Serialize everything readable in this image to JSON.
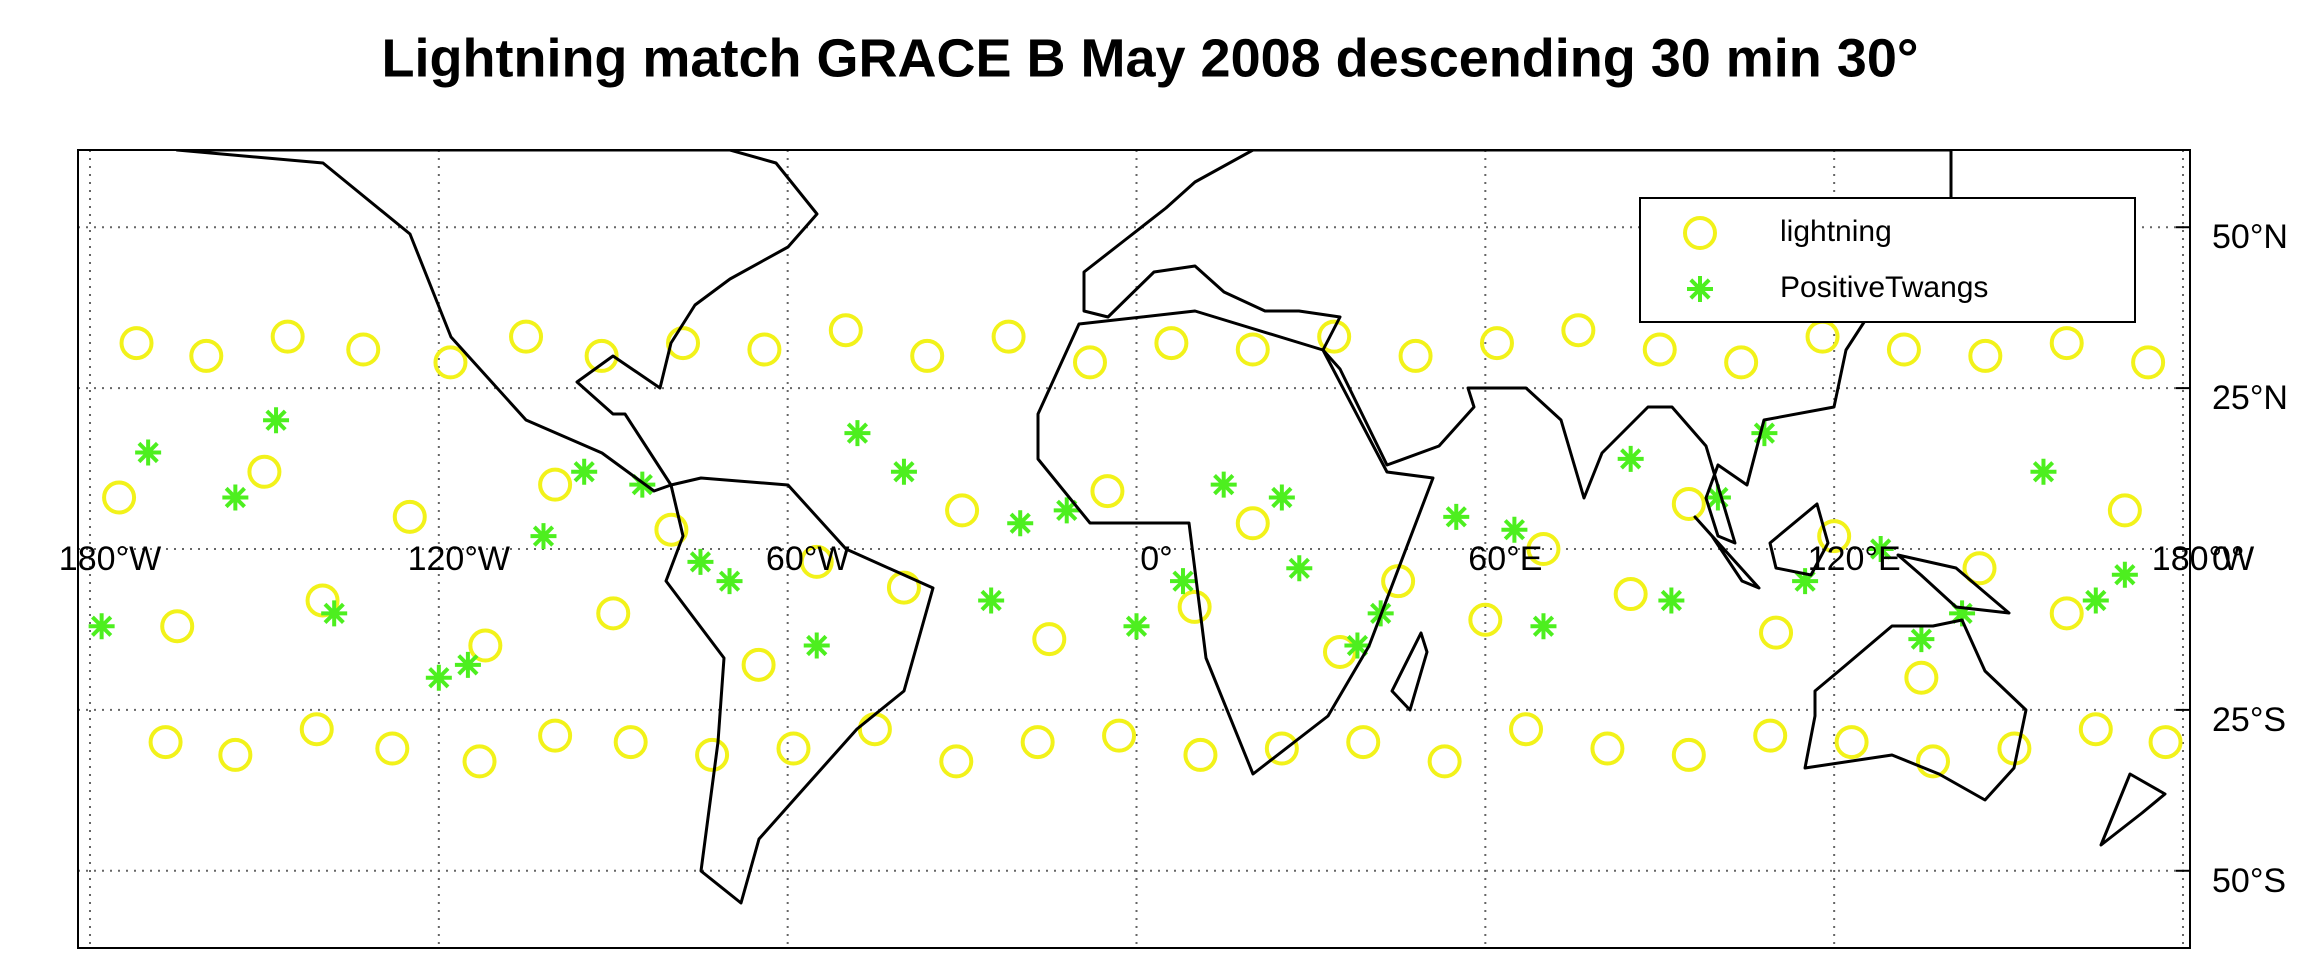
{
  "chart_data": {
    "type": "scatter",
    "title": "Lightning match GRACE B  May 2008 descending 30 min 30°",
    "xlim": [
      -180,
      180
    ],
    "ylim": [
      -62,
      62
    ],
    "xticks": [
      {
        "value": -180,
        "label": "180°W"
      },
      {
        "value": -120,
        "label": "120°W"
      },
      {
        "value": -60,
        "label": "60°W"
      },
      {
        "value": 0,
        "label": "0°"
      },
      {
        "value": 60,
        "label": "60°E"
      },
      {
        "value": 120,
        "label": "120°E"
      },
      {
        "value": 180,
        "label": "180°W"
      }
    ],
    "yticks": [
      {
        "value": 50,
        "label": "50°N"
      },
      {
        "value": 25,
        "label": "25°N"
      },
      {
        "value": 0,
        "label": "0°"
      },
      {
        "value": -25,
        "label": "25°S"
      },
      {
        "value": -50,
        "label": "50°S"
      }
    ],
    "grid": true,
    "legend": "upper right",
    "series": [
      {
        "name": "lightning",
        "color": "#f2f21a",
        "marker": "circle",
        "x": [
          -172,
          -160,
          -146,
          -133,
          -118,
          -105,
          -92,
          -78,
          -64,
          -50,
          -36,
          -22,
          -8,
          6,
          20,
          34,
          48,
          62,
          76,
          90,
          104,
          118,
          132,
          146,
          160,
          174,
          -167,
          -155,
          -141,
          -128,
          -113,
          -100,
          -87,
          -73,
          -59,
          -45,
          -31,
          -17,
          -3,
          11,
          25,
          39,
          53,
          67,
          81,
          95,
          109,
          123,
          137,
          151,
          165,
          177,
          -175,
          -150,
          -125,
          -100,
          -80,
          -55,
          -30,
          -5,
          20,
          45,
          70,
          95,
          120,
          145,
          170,
          -165,
          -140,
          -112,
          -90,
          -65,
          -40,
          -15,
          10,
          35,
          60,
          85,
          110,
          135,
          160
        ],
        "y": [
          32,
          30,
          33,
          31,
          29,
          33,
          30,
          32,
          31,
          34,
          30,
          33,
          29,
          32,
          31,
          33,
          30,
          32,
          34,
          31,
          29,
          33,
          31,
          30,
          32,
          29,
          -30,
          -32,
          -28,
          -31,
          -33,
          -29,
          -30,
          -32,
          -31,
          -28,
          -33,
          -30,
          -29,
          -32,
          -31,
          -30,
          -33,
          -28,
          -31,
          -32,
          -29,
          -30,
          -33,
          -31,
          -28,
          -30,
          8,
          12,
          5,
          10,
          3,
          -2,
          6,
          9,
          4,
          -5,
          0,
          7,
          2,
          -3,
          6,
          -12,
          -8,
          -15,
          -10,
          -18,
          -6,
          -14,
          -9,
          -16,
          -11,
          -7,
          -13,
          -20,
          -10
        ]
      },
      {
        "name": "PositiveTwangs",
        "color": "#4def1f",
        "marker": "asterisk",
        "x": [
          -170,
          -155,
          -138,
          -120,
          -102,
          -85,
          -70,
          -55,
          -40,
          -25,
          -12,
          0,
          15,
          28,
          42,
          55,
          70,
          85,
          100,
          115,
          128,
          142,
          156,
          170,
          -178,
          -148,
          -115,
          -95,
          -75,
          -48,
          -20,
          8,
          25,
          38,
          65,
          92,
          108,
          135,
          165
        ],
        "y": [
          15,
          8,
          -10,
          -20,
          2,
          10,
          -5,
          -15,
          12,
          -8,
          6,
          -12,
          10,
          -3,
          -10,
          5,
          -12,
          14,
          8,
          -5,
          0,
          -10,
          12,
          -4,
          -12,
          20,
          -18,
          12,
          -2,
          18,
          4,
          -5,
          8,
          -15,
          3,
          -8,
          18,
          -14,
          -8
        ]
      }
    ]
  }
}
